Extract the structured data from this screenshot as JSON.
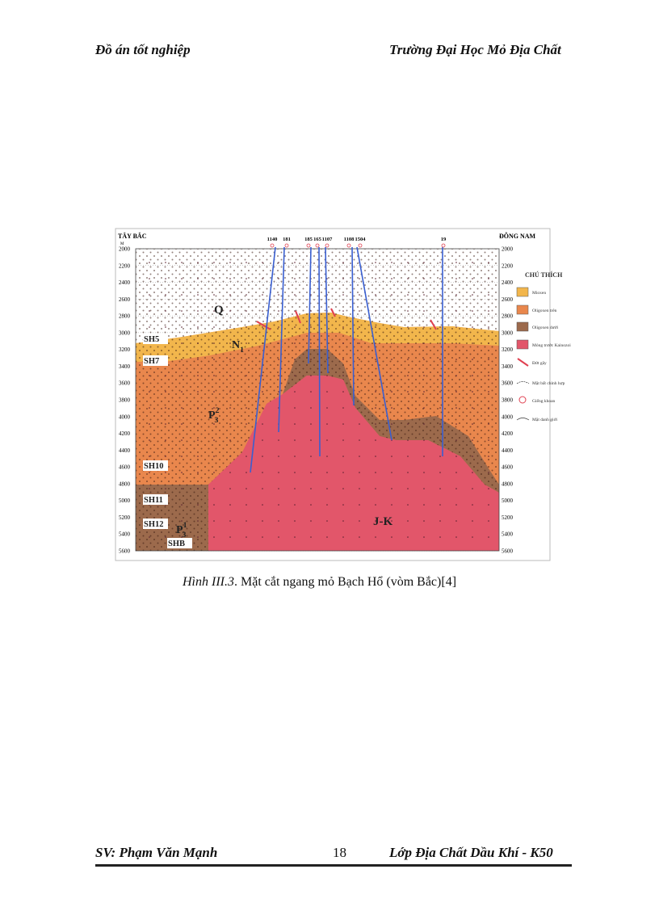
{
  "header": {
    "left": "Đồ án tốt nghiệp",
    "right": "Trường Đại Học Mỏ Địa Chất"
  },
  "figure": {
    "left_direction": "TÂY BẮC",
    "right_direction": "ĐÔNG NAM",
    "unit": "M",
    "depths": [
      2000,
      2200,
      2400,
      2600,
      2800,
      3000,
      3200,
      3400,
      3600,
      3800,
      4000,
      4200,
      4400,
      4600,
      4800,
      5000,
      5200,
      5400,
      5600
    ],
    "wells": [
      "1140",
      "181",
      "185",
      "165",
      "1107",
      "1108",
      "1504",
      "19"
    ],
    "formations": [
      {
        "base": "Q"
      },
      {
        "base": "N",
        "sub": "1"
      },
      {
        "base": "P",
        "sub": "3",
        "sup": "2"
      },
      {
        "base": "P",
        "sub": "3",
        "sup": "1"
      },
      {
        "base": "J-K"
      }
    ],
    "sections": [
      "SH5",
      "SH7",
      "SH10",
      "SH11",
      "SH12",
      "SHB"
    ],
    "legend": {
      "title": "CHÚ THÍCH",
      "items": [
        "Mioxen",
        "Oligoxen trên",
        "Oligoxen dưới",
        "Móng trước Kainozoi",
        "Đứt gãy",
        "Mặt bất chỉnh hợp",
        "Giếng khoan",
        "Mặt danh giới"
      ]
    }
  },
  "caption": {
    "label": "Hình III.3",
    "text": ". Mặt cắt ngang mỏ Bạch Hổ (vòm Bắc)[4]"
  },
  "footer": {
    "student": "SV: Phạm Văn Mạnh",
    "page": 18,
    "class": "Lớp Địa Chất Dầu Khí - K50"
  }
}
